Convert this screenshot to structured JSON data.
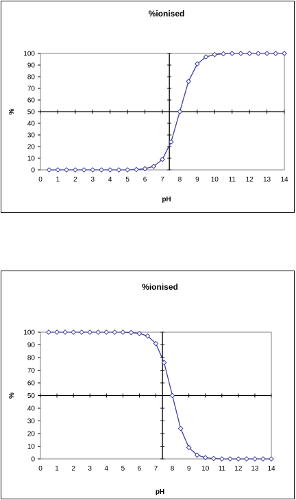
{
  "charts": [
    {
      "id": "top",
      "chart_data": {
        "type": "line",
        "title": "%ionised",
        "xlabel": "pH",
        "ylabel": "%",
        "xlim": [
          0,
          14
        ],
        "ylim": [
          0,
          100
        ],
        "xticks": [
          0,
          1,
          2,
          3,
          4,
          5,
          6,
          7,
          8,
          9,
          10,
          11,
          12,
          13,
          14
        ],
        "yticks": [
          0,
          10,
          20,
          30,
          40,
          50,
          60,
          70,
          80,
          90,
          100
        ],
        "grid": false,
        "reference_lines": {
          "x": 7.4,
          "y": 50
        },
        "colors": {
          "line": "#3d3f9a",
          "marker_fill": "#ffffff",
          "marker_edge": "#3d3f9a"
        },
        "series": [
          {
            "marker": "diamond",
            "x": [
              0.5,
              1,
              1.5,
              2,
              2.5,
              3,
              3.5,
              4,
              4.5,
              5,
              5.5,
              6,
              6.5,
              7,
              7.5,
              8,
              8.5,
              9,
              9.5,
              10,
              10.5,
              11,
              11.5,
              12,
              12.5,
              13,
              13.5,
              14
            ],
            "y": [
              0,
              0,
              0,
              0,
              0,
              0,
              0,
              0,
              0,
              0,
              0.3,
              1,
              3,
              9,
              24,
              50,
              76,
              91,
              97,
              99,
              99.7,
              100,
              100,
              100,
              100,
              100,
              100,
              100
            ]
          }
        ]
      }
    },
    {
      "id": "bottom",
      "chart_data": {
        "type": "line",
        "title": "%ionised",
        "xlabel": "pH",
        "ylabel": "%",
        "xlim": [
          0,
          14
        ],
        "ylim": [
          0,
          100
        ],
        "xticks": [
          0,
          1,
          2,
          3,
          4,
          5,
          6,
          7,
          8,
          9,
          10,
          11,
          12,
          13,
          14
        ],
        "yticks": [
          0,
          10,
          20,
          30,
          40,
          50,
          60,
          70,
          80,
          90,
          100
        ],
        "grid": false,
        "reference_lines": {
          "x": 7.4,
          "y": 50
        },
        "colors": {
          "line": "#3d3f9a",
          "marker_fill": "#ffffff",
          "marker_edge": "#3d3f9a"
        },
        "series": [
          {
            "marker": "diamond",
            "x": [
              0.5,
              1,
              1.5,
              2,
              2.5,
              3,
              3.5,
              4,
              4.5,
              5,
              5.5,
              6,
              6.5,
              7,
              7.5,
              8,
              8.5,
              9,
              9.5,
              10,
              10.5,
              11,
              11.5,
              12,
              12.5,
              13,
              13.5,
              14
            ],
            "y": [
              100,
              100,
              100,
              100,
              100,
              100,
              100,
              100,
              100,
              100,
              99.7,
              99,
              97,
              91,
              76,
              50,
              24,
              9,
              3,
              1,
              0.3,
              0,
              0,
              0,
              0,
              0,
              0,
              0
            ]
          }
        ]
      }
    }
  ]
}
